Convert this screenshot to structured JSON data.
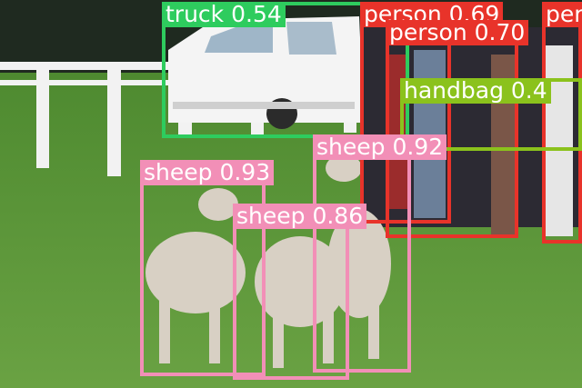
{
  "image": {
    "colors": {
      "grass": "#5f9a3c",
      "grass_dark": "#3f6f27",
      "fence": "#f2f2f2",
      "truck": "#f4f4f4",
      "truck_window": "#9fb6c8",
      "sheep_wool": "#d8d0c4",
      "crowd_dark": "#2c2a33"
    }
  },
  "detections": [
    {
      "id": "truck-1",
      "label": "truck 0.54",
      "color": "#2ecc5e"
    },
    {
      "id": "person-1",
      "label": "person 0.69",
      "color": "#e8332a"
    },
    {
      "id": "person-2",
      "label": "person 0.70",
      "color": "#e8332a"
    },
    {
      "id": "person-3",
      "label": "per",
      "color": "#e8332a"
    },
    {
      "id": "handbag-1",
      "label": "handbag 0.4",
      "color": "#8bc21c"
    },
    {
      "id": "sheep-1",
      "label": "sheep 0.93",
      "color": "#f28fb7"
    },
    {
      "id": "sheep-2",
      "label": "sheep 0.92",
      "color": "#f28fb7"
    },
    {
      "id": "sheep-3",
      "label": "sheep 0.86",
      "color": "#f28fb7"
    }
  ]
}
